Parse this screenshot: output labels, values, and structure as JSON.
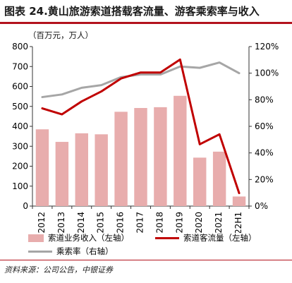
{
  "title": "图表 24.黄山旅游索道搭载客流量、游客乘索率与收入",
  "unit_label": "（百万元，万人）",
  "source": "资料来源：公司公告，中银证券",
  "legend": {
    "bar": "索道业务收入（左轴）",
    "line_red": "索道客流量（左轴）",
    "line_gray": "乘索率（右轴）"
  },
  "colors": {
    "bar": "#e8adad",
    "red": "#c00000",
    "gray": "#a6a6a6",
    "accent": "#b3121d"
  },
  "chart_data": {
    "type": "bar",
    "categories": [
      "2012",
      "2013",
      "2014",
      "2015",
      "2016",
      "2017",
      "2018",
      "2019",
      "2020",
      "2021",
      "22H1"
    ],
    "left_axis": {
      "min": 0,
      "max": 800,
      "step": 100,
      "ticks": [
        "0",
        "100",
        "200",
        "300",
        "400",
        "500",
        "600",
        "700",
        "800"
      ]
    },
    "right_axis": {
      "min": 0,
      "max": 120,
      "step": 20,
      "ticks": [
        "0%",
        "20%",
        "40%",
        "60%",
        "80%",
        "100%",
        "120%"
      ]
    },
    "series": [
      {
        "name": "索道业务收入（左轴）",
        "type": "bar",
        "axis": "left",
        "values": [
          385,
          322,
          365,
          360,
          473,
          492,
          496,
          553,
          243,
          273,
          48
        ]
      },
      {
        "name": "索道客流量（左轴）",
        "type": "line",
        "axis": "left",
        "values": [
          490,
          460,
          525,
          575,
          640,
          670,
          670,
          735,
          310,
          360,
          65
        ]
      },
      {
        "name": "乘索率（右轴）",
        "type": "line",
        "axis": "right",
        "values": [
          82,
          84,
          89,
          91,
          97,
          99,
          99,
          105,
          104,
          108,
          100
        ]
      }
    ]
  }
}
